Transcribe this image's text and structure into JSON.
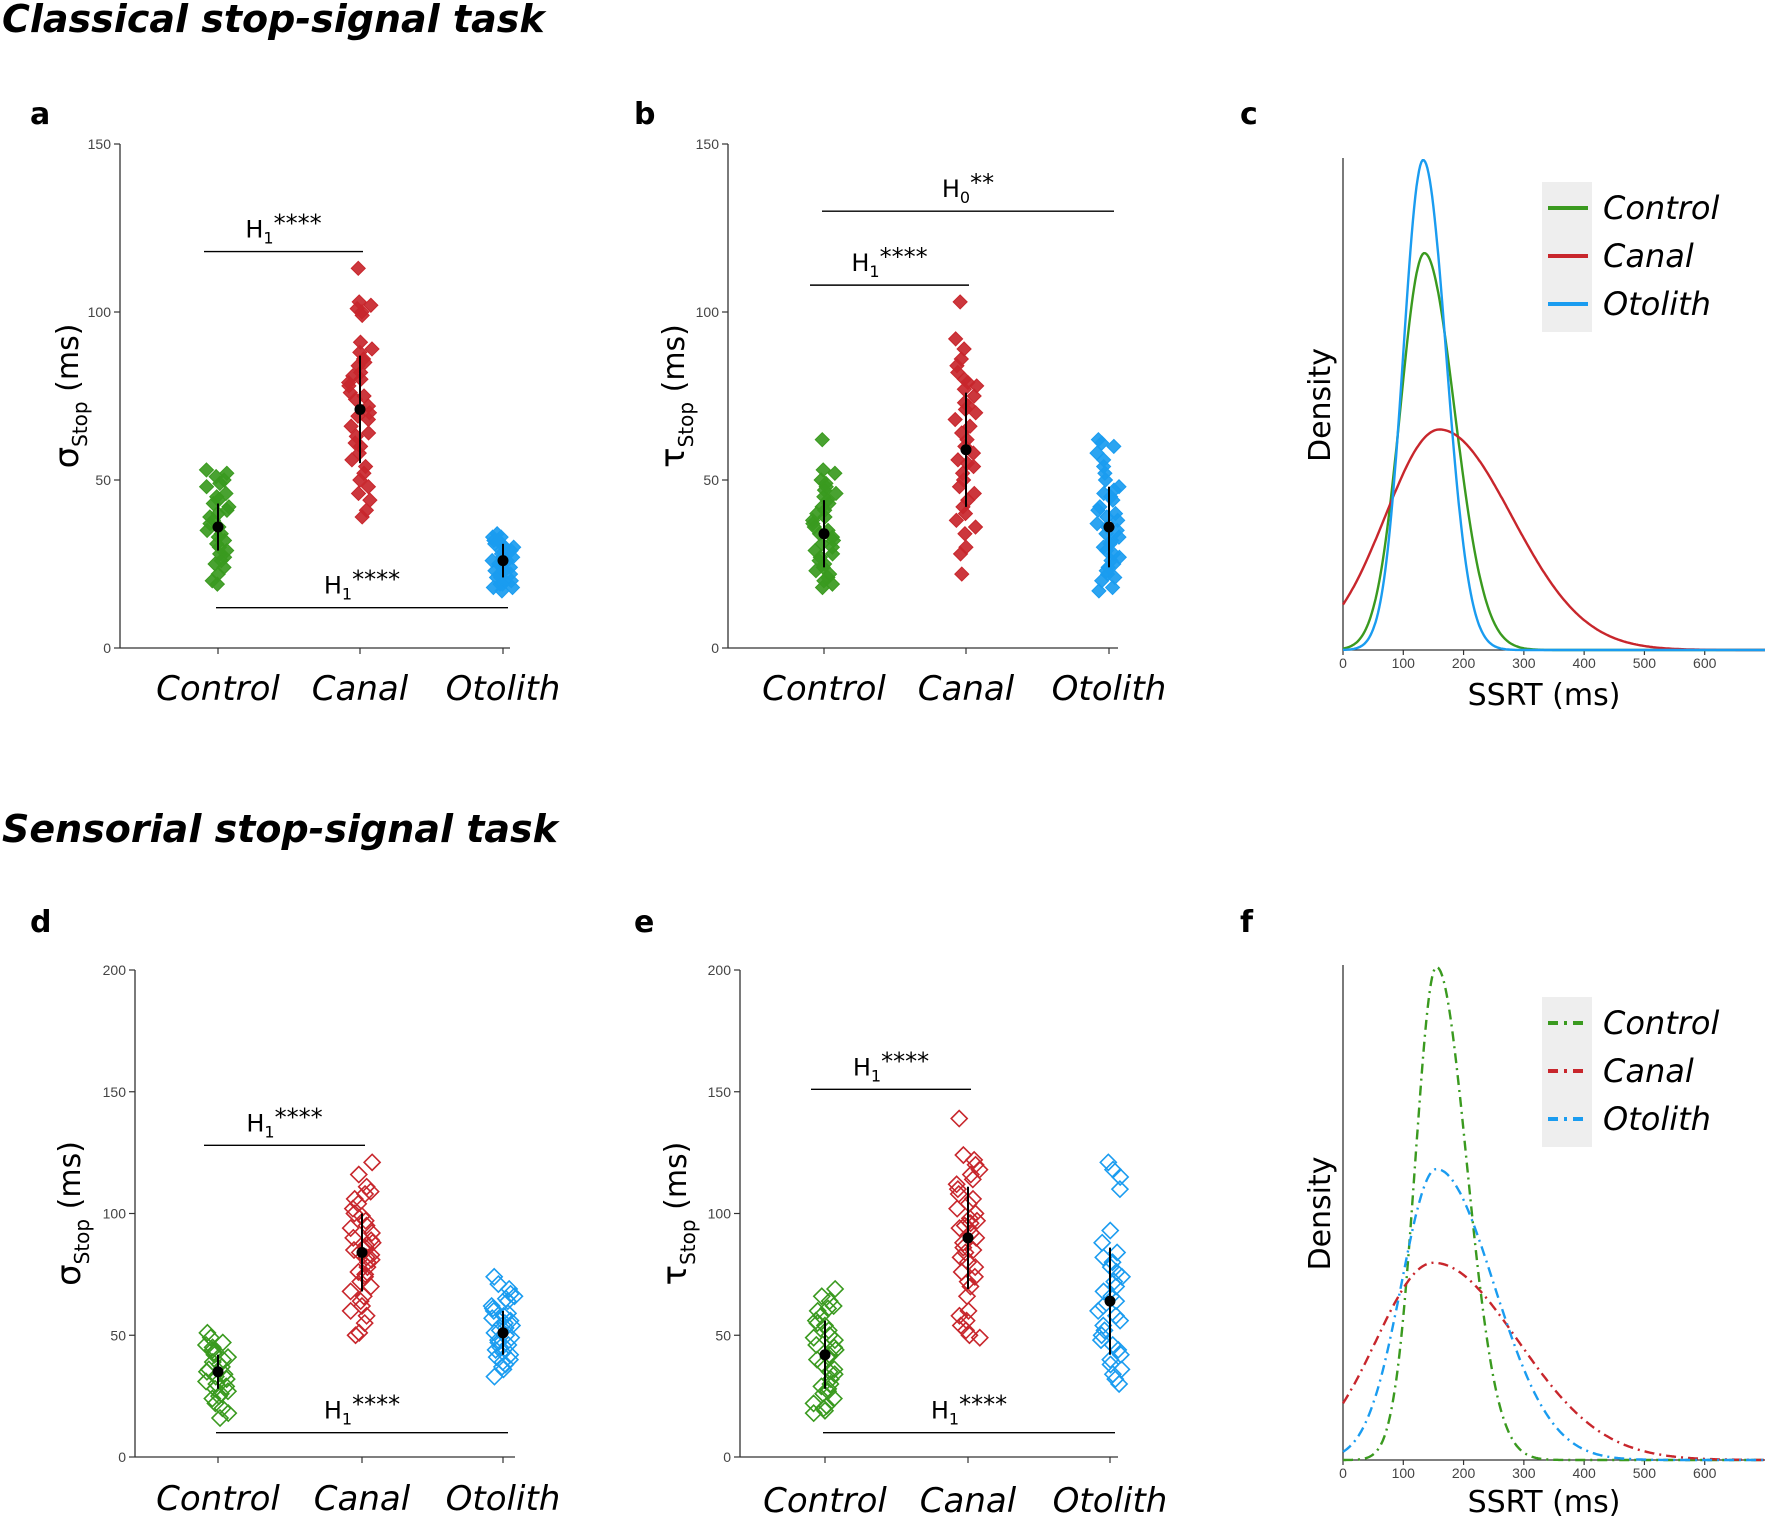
{
  "sections": {
    "top_title": "Classical stop-signal task",
    "bottom_title": "Sensorial stop-signal task"
  },
  "colors": {
    "control": "#3a9a1f",
    "canal": "#c8262c",
    "otolith": "#1a9cf0",
    "axis": "#333333",
    "legend_bg": "#eeeeee"
  },
  "chart_data": [
    {
      "id": "a",
      "type": "scatter",
      "letter": "a",
      "filled": true,
      "ylabel_main": "σ",
      "ylabel_sub": "Stop",
      "ylabel_unit": " (ms)",
      "ylim": [
        0,
        150
      ],
      "yticks": [
        "0",
        "50",
        "100",
        "150"
      ],
      "categories": [
        "Control",
        "Canal",
        "Otolith"
      ],
      "series": [
        {
          "name": "Control",
          "mean": 36,
          "sd": 7,
          "values": [
            53,
            52,
            51,
            50,
            49,
            48,
            46,
            45,
            44,
            43,
            42,
            41,
            40,
            39,
            38,
            37,
            36,
            35,
            34,
            33,
            32,
            31,
            30,
            29,
            28,
            27,
            26,
            25,
            24,
            22,
            20,
            19
          ]
        },
        {
          "name": "Canal",
          "mean": 71,
          "sd": 16,
          "values": [
            113,
            103,
            102,
            101,
            100,
            99,
            91,
            89,
            88,
            86,
            85,
            84,
            82,
            81,
            80,
            79,
            78,
            76,
            75,
            74,
            72,
            70,
            69,
            68,
            66,
            64,
            63,
            61,
            60,
            58,
            56,
            54,
            52,
            50,
            48,
            46,
            44,
            41,
            39
          ]
        },
        {
          "name": "Otolith",
          "mean": 26,
          "sd": 5,
          "values": [
            34,
            33,
            33,
            32,
            32,
            31,
            31,
            30,
            30,
            29,
            29,
            28,
            28,
            27,
            27,
            26,
            26,
            25,
            25,
            24,
            24,
            23,
            23,
            22,
            22,
            21,
            21,
            20,
            20,
            19,
            19,
            18,
            18,
            17
          ]
        }
      ],
      "annotations": [
        {
          "sym": "H",
          "sub": "1",
          "stars": "****",
          "from": 0,
          "to": 1,
          "y": 118
        },
        {
          "sym": "H",
          "sub": "1",
          "stars": "****",
          "from": 0,
          "to": 2,
          "y": 12
        }
      ]
    },
    {
      "id": "b",
      "type": "scatter",
      "letter": "b",
      "filled": true,
      "ylabel_main": "τ",
      "ylabel_sub": "Stop",
      "ylabel_unit": " (ms)",
      "ylim": [
        0,
        150
      ],
      "yticks": [
        "0",
        "50",
        "100",
        "150"
      ],
      "categories": [
        "Control",
        "Canal",
        "Otolith"
      ],
      "series": [
        {
          "name": "Control",
          "mean": 34,
          "sd": 10,
          "values": [
            62,
            53,
            52,
            50,
            49,
            48,
            47,
            46,
            45,
            44,
            43,
            42,
            41,
            40,
            39,
            38,
            37,
            36,
            35,
            34,
            33,
            32,
            31,
            30,
            29,
            28,
            27,
            26,
            25,
            24,
            23,
            22,
            21,
            20,
            19,
            18
          ]
        },
        {
          "name": "Canal",
          "mean": 59,
          "sd": 17,
          "values": [
            103,
            92,
            89,
            86,
            84,
            82,
            80,
            79,
            78,
            77,
            75,
            73,
            72,
            71,
            70,
            68,
            66,
            64,
            62,
            60,
            58,
            56,
            55,
            54,
            52,
            50,
            48,
            46,
            44,
            42,
            40,
            38,
            36,
            34,
            30,
            28,
            22
          ]
        },
        {
          "name": "Otolith",
          "mean": 36,
          "sd": 12,
          "values": [
            62,
            61,
            60,
            58,
            56,
            54,
            52,
            50,
            48,
            47,
            46,
            45,
            44,
            42,
            41,
            40,
            39,
            38,
            37,
            36,
            35,
            34,
            33,
            32,
            31,
            30,
            29,
            28,
            27,
            26,
            25,
            24,
            23,
            22,
            21,
            20,
            18,
            17
          ]
        }
      ],
      "annotations": [
        {
          "sym": "H",
          "sub": "0",
          "stars": "**",
          "from": 0,
          "to": 2,
          "y": 130
        },
        {
          "sym": "H",
          "sub": "1",
          "stars": "****",
          "from": 0,
          "to": 1,
          "y": 108
        }
      ]
    },
    {
      "id": "c",
      "type": "line",
      "letter": "c",
      "style": "solid",
      "ylabel": "Density",
      "xlabel": "SSRT (ms)",
      "xlim": [
        0,
        700
      ],
      "xticks": [
        "0",
        "100",
        "200",
        "300",
        "400",
        "500",
        "600"
      ],
      "ylim": [
        0,
        1
      ],
      "series": [
        {
          "name": "Control",
          "peak_x": 135,
          "peak_y": 0.81,
          "sigma_left": 40,
          "sigma_right": 50
        },
        {
          "name": "Canal",
          "peak_x": 160,
          "peak_y": 0.45,
          "sigma_left": 90,
          "sigma_right": 120
        },
        {
          "name": "Otolith",
          "peak_x": 133,
          "peak_y": 1.0,
          "sigma_left": 33,
          "sigma_right": 38
        }
      ],
      "legend": [
        "Control",
        "Canal",
        "Otolith"
      ]
    },
    {
      "id": "d",
      "type": "scatter",
      "letter": "d",
      "filled": false,
      "ylabel_main": "σ",
      "ylabel_sub": "Stop",
      "ylabel_unit": " (ms)",
      "ylim": [
        0,
        200
      ],
      "yticks": [
        "0",
        "50",
        "100",
        "150",
        "200"
      ],
      "categories": [
        "Control",
        "Canal",
        "Otolith"
      ],
      "series": [
        {
          "name": "Control",
          "mean": 35,
          "sd": 7,
          "values": [
            51,
            49,
            47,
            46,
            45,
            44,
            43,
            42,
            41,
            40,
            39,
            38,
            37,
            36,
            35,
            34,
            33,
            32,
            31,
            30,
            29,
            28,
            27,
            26,
            25,
            24,
            22,
            20,
            18,
            16
          ]
        },
        {
          "name": "Canal",
          "mean": 84,
          "sd": 16,
          "values": [
            121,
            116,
            111,
            109,
            108,
            106,
            104,
            102,
            100,
            99,
            97,
            95,
            94,
            92,
            90,
            89,
            88,
            87,
            86,
            85,
            84,
            83,
            82,
            81,
            80,
            78,
            76,
            75,
            74,
            72,
            70,
            68,
            66,
            64,
            62,
            60,
            58,
            55,
            51,
            50
          ]
        },
        {
          "name": "Otolith",
          "mean": 51,
          "sd": 9,
          "values": [
            74,
            71,
            69,
            67,
            66,
            65,
            64,
            62,
            61,
            60,
            59,
            58,
            57,
            56,
            55,
            54,
            53,
            52,
            51,
            50,
            49,
            48,
            47,
            46,
            45,
            44,
            43,
            42,
            41,
            40,
            39,
            38,
            37,
            36,
            33
          ]
        }
      ],
      "annotations": [
        {
          "sym": "H",
          "sub": "1",
          "stars": "****",
          "from": 0,
          "to": 1,
          "y": 128
        },
        {
          "sym": "H",
          "sub": "1",
          "stars": "****",
          "from": 0,
          "to": 2,
          "y": 10
        }
      ]
    },
    {
      "id": "e",
      "type": "scatter",
      "letter": "e",
      "filled": false,
      "ylabel_main": "τ",
      "ylabel_sub": "Stop",
      "ylabel_unit": " (ms)",
      "ylim": [
        0,
        200
      ],
      "yticks": [
        "0",
        "50",
        "100",
        "150",
        "200"
      ],
      "categories": [
        "Control",
        "Canal",
        "Otolith"
      ],
      "series": [
        {
          "name": "Control",
          "mean": 42,
          "sd": 14,
          "values": [
            69,
            66,
            64,
            62,
            61,
            60,
            58,
            56,
            55,
            54,
            52,
            50,
            49,
            48,
            46,
            45,
            44,
            42,
            41,
            40,
            38,
            36,
            35,
            34,
            32,
            30,
            29,
            28,
            27,
            26,
            24,
            22,
            21,
            20,
            19,
            18
          ]
        },
        {
          "name": "Canal",
          "mean": 90,
          "sd": 21,
          "values": [
            139,
            124,
            122,
            120,
            118,
            116,
            114,
            112,
            110,
            108,
            106,
            104,
            102,
            100,
            98,
            97,
            96,
            95,
            94,
            92,
            90,
            88,
            86,
            85,
            84,
            82,
            80,
            78,
            76,
            74,
            72,
            70,
            66,
            60,
            58,
            56,
            54,
            52,
            50,
            49
          ]
        },
        {
          "name": "Otolith",
          "mean": 64,
          "sd": 22,
          "values": [
            121,
            118,
            115,
            110,
            93,
            88,
            84,
            82,
            80,
            78,
            76,
            74,
            72,
            70,
            68,
            66,
            64,
            62,
            60,
            58,
            56,
            54,
            52,
            50,
            48,
            46,
            44,
            42,
            40,
            38,
            36,
            34,
            32,
            30
          ]
        }
      ],
      "annotations": [
        {
          "sym": "H",
          "sub": "1",
          "stars": "****",
          "from": 0,
          "to": 1,
          "y": 151
        },
        {
          "sym": "H",
          "sub": "1",
          "stars": "****",
          "from": 0,
          "to": 2,
          "y": 10
        }
      ]
    },
    {
      "id": "f",
      "type": "line",
      "letter": "f",
      "style": "dashdot",
      "ylabel": "Density",
      "xlabel": "SSRT (ms)",
      "xlim": [
        0,
        700
      ],
      "xticks": [
        "0",
        "100",
        "200",
        "300",
        "400",
        "500",
        "600"
      ],
      "ylim": [
        0,
        1
      ],
      "series": [
        {
          "name": "Control",
          "peak_x": 155,
          "peak_y": 1.0,
          "sigma_left": 35,
          "sigma_right": 50
        },
        {
          "name": "Canal",
          "peak_x": 150,
          "peak_y": 0.4,
          "sigma_left": 95,
          "sigma_right": 140
        },
        {
          "name": "Otolith",
          "peak_x": 155,
          "peak_y": 0.59,
          "sigma_left": 58,
          "sigma_right": 95
        }
      ],
      "legend": [
        "Control",
        "Canal",
        "Otolith"
      ]
    }
  ]
}
